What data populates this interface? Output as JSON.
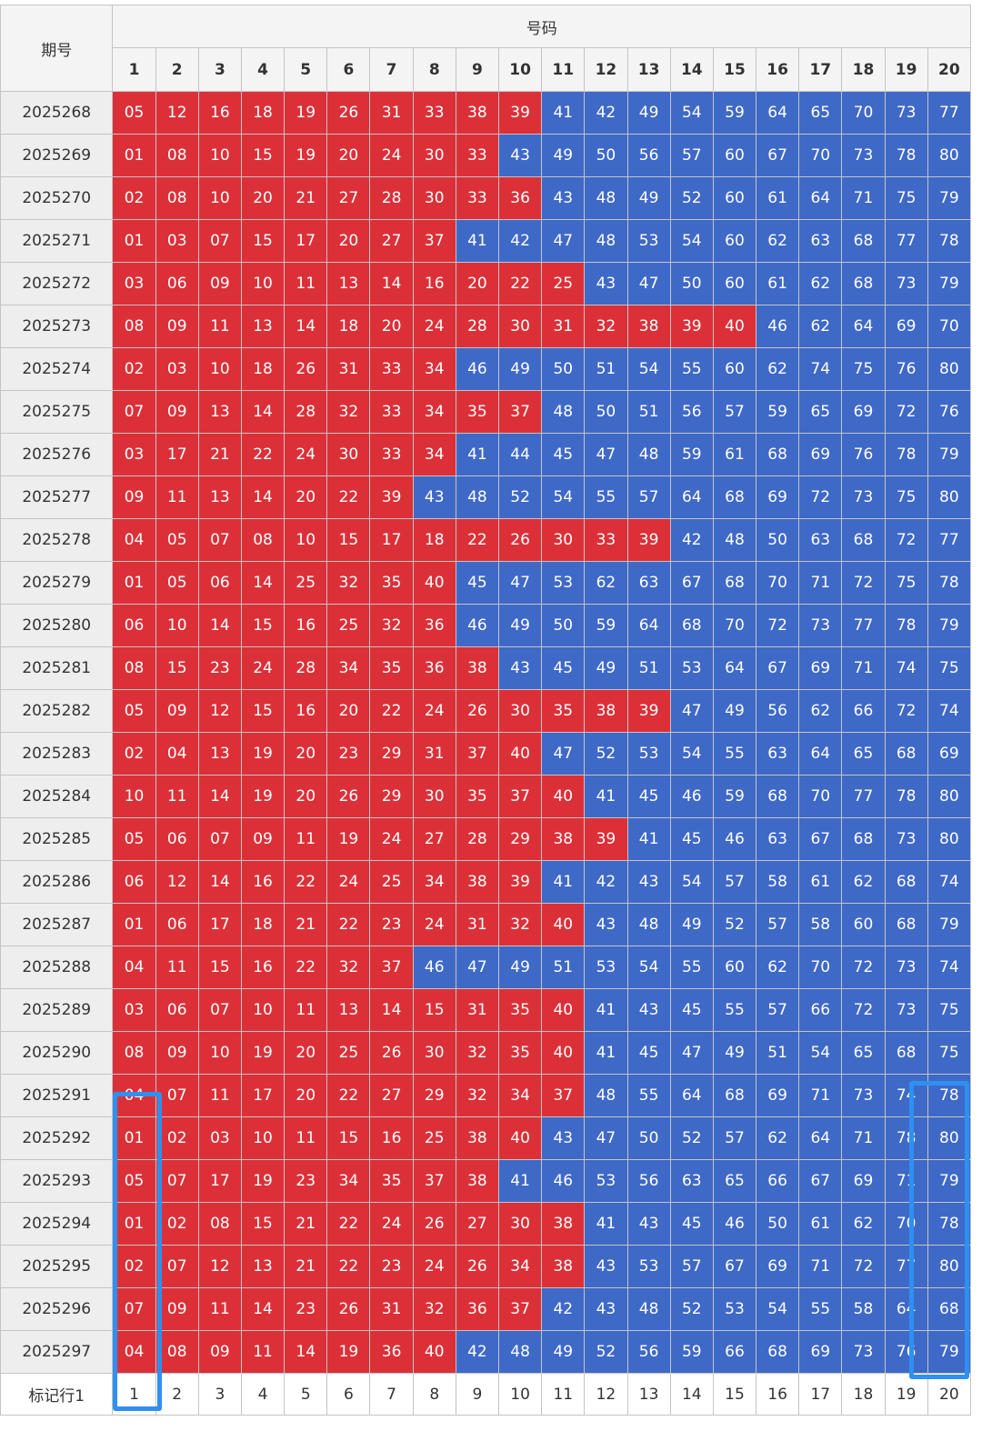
{
  "header": {
    "period_label": "期号",
    "numbers_label": "号码",
    "columns": [
      "1",
      "2",
      "3",
      "4",
      "5",
      "6",
      "7",
      "8",
      "9",
      "10",
      "11",
      "12",
      "13",
      "14",
      "15",
      "16",
      "17",
      "18",
      "19",
      "20"
    ]
  },
  "colors": {
    "low": "#dc3038",
    "high": "#3f69c7",
    "highlight": "#2e90f0"
  },
  "rows": [
    {
      "period": "2025268",
      "nums": [
        "05",
        "12",
        "16",
        "18",
        "19",
        "26",
        "31",
        "33",
        "38",
        "39",
        "41",
        "42",
        "49",
        "54",
        "59",
        "64",
        "65",
        "70",
        "73",
        "77"
      ],
      "red_count": 10
    },
    {
      "period": "2025269",
      "nums": [
        "01",
        "08",
        "10",
        "15",
        "19",
        "20",
        "24",
        "30",
        "33",
        "43",
        "49",
        "50",
        "56",
        "57",
        "60",
        "67",
        "70",
        "73",
        "78",
        "80"
      ],
      "red_count": 9
    },
    {
      "period": "2025270",
      "nums": [
        "02",
        "08",
        "10",
        "20",
        "21",
        "27",
        "28",
        "30",
        "33",
        "36",
        "43",
        "48",
        "49",
        "52",
        "60",
        "61",
        "64",
        "71",
        "75",
        "79"
      ],
      "red_count": 10
    },
    {
      "period": "2025271",
      "nums": [
        "01",
        "03",
        "07",
        "15",
        "17",
        "20",
        "27",
        "37",
        "41",
        "42",
        "47",
        "48",
        "53",
        "54",
        "60",
        "62",
        "63",
        "68",
        "77",
        "78"
      ],
      "red_count": 8
    },
    {
      "period": "2025272",
      "nums": [
        "03",
        "06",
        "09",
        "10",
        "11",
        "13",
        "14",
        "16",
        "20",
        "22",
        "25",
        "43",
        "47",
        "50",
        "60",
        "61",
        "62",
        "68",
        "73",
        "79"
      ],
      "red_count": 11
    },
    {
      "period": "2025273",
      "nums": [
        "08",
        "09",
        "11",
        "13",
        "14",
        "18",
        "20",
        "24",
        "28",
        "30",
        "31",
        "32",
        "38",
        "39",
        "40",
        "46",
        "62",
        "64",
        "69",
        "70"
      ],
      "red_count": 15
    },
    {
      "period": "2025274",
      "nums": [
        "02",
        "03",
        "10",
        "18",
        "26",
        "31",
        "33",
        "34",
        "46",
        "49",
        "50",
        "51",
        "54",
        "55",
        "60",
        "62",
        "74",
        "75",
        "76",
        "80"
      ],
      "red_count": 8
    },
    {
      "period": "2025275",
      "nums": [
        "07",
        "09",
        "13",
        "14",
        "28",
        "32",
        "33",
        "34",
        "35",
        "37",
        "48",
        "50",
        "51",
        "56",
        "57",
        "59",
        "65",
        "69",
        "72",
        "76"
      ],
      "red_count": 10
    },
    {
      "period": "2025276",
      "nums": [
        "03",
        "17",
        "21",
        "22",
        "24",
        "30",
        "33",
        "34",
        "41",
        "44",
        "45",
        "47",
        "48",
        "59",
        "61",
        "68",
        "69",
        "76",
        "78",
        "79"
      ],
      "red_count": 8
    },
    {
      "period": "2025277",
      "nums": [
        "09",
        "11",
        "13",
        "14",
        "20",
        "22",
        "39",
        "43",
        "48",
        "52",
        "54",
        "55",
        "57",
        "64",
        "68",
        "69",
        "72",
        "73",
        "75",
        "80"
      ],
      "red_count": 7
    },
    {
      "period": "2025278",
      "nums": [
        "04",
        "05",
        "07",
        "08",
        "10",
        "15",
        "17",
        "18",
        "22",
        "26",
        "30",
        "33",
        "39",
        "42",
        "48",
        "50",
        "63",
        "68",
        "72",
        "77"
      ],
      "red_count": 13
    },
    {
      "period": "2025279",
      "nums": [
        "01",
        "05",
        "06",
        "14",
        "25",
        "32",
        "35",
        "40",
        "45",
        "47",
        "53",
        "62",
        "63",
        "67",
        "68",
        "70",
        "71",
        "72",
        "75",
        "78"
      ],
      "red_count": 8
    },
    {
      "period": "2025280",
      "nums": [
        "06",
        "10",
        "14",
        "15",
        "16",
        "25",
        "32",
        "36",
        "46",
        "49",
        "50",
        "59",
        "64",
        "68",
        "70",
        "72",
        "73",
        "77",
        "78",
        "79"
      ],
      "red_count": 8
    },
    {
      "period": "2025281",
      "nums": [
        "08",
        "15",
        "23",
        "24",
        "28",
        "34",
        "35",
        "36",
        "38",
        "43",
        "45",
        "49",
        "51",
        "53",
        "64",
        "67",
        "69",
        "71",
        "74",
        "75"
      ],
      "red_count": 9
    },
    {
      "period": "2025282",
      "nums": [
        "05",
        "09",
        "12",
        "15",
        "16",
        "20",
        "22",
        "24",
        "26",
        "30",
        "35",
        "38",
        "39",
        "47",
        "49",
        "56",
        "62",
        "66",
        "72",
        "74"
      ],
      "red_count": 13
    },
    {
      "period": "2025283",
      "nums": [
        "02",
        "04",
        "13",
        "19",
        "20",
        "23",
        "29",
        "31",
        "37",
        "40",
        "47",
        "52",
        "53",
        "54",
        "55",
        "63",
        "64",
        "65",
        "68",
        "69"
      ],
      "red_count": 10
    },
    {
      "period": "2025284",
      "nums": [
        "10",
        "11",
        "14",
        "19",
        "20",
        "26",
        "29",
        "30",
        "35",
        "37",
        "40",
        "41",
        "45",
        "46",
        "59",
        "68",
        "70",
        "77",
        "78",
        "80"
      ],
      "red_count": 11
    },
    {
      "period": "2025285",
      "nums": [
        "05",
        "06",
        "07",
        "09",
        "11",
        "19",
        "24",
        "27",
        "28",
        "29",
        "38",
        "39",
        "41",
        "45",
        "46",
        "63",
        "67",
        "68",
        "73",
        "80"
      ],
      "red_count": 12
    },
    {
      "period": "2025286",
      "nums": [
        "06",
        "12",
        "14",
        "16",
        "22",
        "24",
        "25",
        "34",
        "38",
        "39",
        "41",
        "42",
        "43",
        "54",
        "57",
        "58",
        "61",
        "62",
        "68",
        "74"
      ],
      "red_count": 10
    },
    {
      "period": "2025287",
      "nums": [
        "01",
        "06",
        "17",
        "18",
        "21",
        "22",
        "23",
        "24",
        "31",
        "32",
        "40",
        "43",
        "48",
        "49",
        "52",
        "57",
        "58",
        "60",
        "68",
        "79"
      ],
      "red_count": 11
    },
    {
      "period": "2025288",
      "nums": [
        "04",
        "11",
        "15",
        "16",
        "22",
        "32",
        "37",
        "46",
        "47",
        "49",
        "51",
        "53",
        "54",
        "55",
        "60",
        "62",
        "70",
        "72",
        "73",
        "74"
      ],
      "red_count": 7
    },
    {
      "period": "2025289",
      "nums": [
        "03",
        "06",
        "07",
        "10",
        "11",
        "13",
        "14",
        "15",
        "31",
        "35",
        "40",
        "41",
        "43",
        "45",
        "55",
        "57",
        "66",
        "72",
        "73",
        "75"
      ],
      "red_count": 11
    },
    {
      "period": "2025290",
      "nums": [
        "08",
        "09",
        "10",
        "19",
        "20",
        "25",
        "26",
        "30",
        "32",
        "35",
        "40",
        "41",
        "45",
        "47",
        "49",
        "51",
        "54",
        "65",
        "68",
        "75"
      ],
      "red_count": 11
    },
    {
      "period": "2025291",
      "nums": [
        "04",
        "07",
        "11",
        "17",
        "20",
        "22",
        "27",
        "29",
        "32",
        "34",
        "37",
        "48",
        "55",
        "64",
        "68",
        "69",
        "71",
        "73",
        "74",
        "78"
      ],
      "red_count": 11
    },
    {
      "period": "2025292",
      "nums": [
        "01",
        "02",
        "03",
        "10",
        "11",
        "15",
        "16",
        "25",
        "38",
        "40",
        "43",
        "47",
        "50",
        "52",
        "57",
        "62",
        "64",
        "71",
        "78",
        "80"
      ],
      "red_count": 10
    },
    {
      "period": "2025293",
      "nums": [
        "05",
        "07",
        "17",
        "19",
        "23",
        "34",
        "35",
        "37",
        "38",
        "41",
        "46",
        "53",
        "56",
        "63",
        "65",
        "66",
        "67",
        "69",
        "71",
        "79"
      ],
      "red_count": 9
    },
    {
      "period": "2025294",
      "nums": [
        "01",
        "02",
        "08",
        "15",
        "21",
        "22",
        "24",
        "26",
        "27",
        "30",
        "38",
        "41",
        "43",
        "45",
        "46",
        "50",
        "61",
        "62",
        "70",
        "78"
      ],
      "red_count": 11
    },
    {
      "period": "2025295",
      "nums": [
        "02",
        "07",
        "12",
        "13",
        "21",
        "22",
        "23",
        "24",
        "26",
        "34",
        "38",
        "43",
        "53",
        "57",
        "67",
        "69",
        "71",
        "72",
        "77",
        "80"
      ],
      "red_count": 11
    },
    {
      "period": "2025296",
      "nums": [
        "07",
        "09",
        "11",
        "14",
        "23",
        "26",
        "31",
        "32",
        "36",
        "37",
        "42",
        "43",
        "48",
        "52",
        "53",
        "54",
        "55",
        "58",
        "64",
        "68"
      ],
      "red_count": 10
    },
    {
      "period": "2025297",
      "nums": [
        "04",
        "08",
        "09",
        "11",
        "14",
        "19",
        "36",
        "40",
        "42",
        "48",
        "49",
        "52",
        "56",
        "59",
        "66",
        "68",
        "69",
        "73",
        "76",
        "79"
      ],
      "red_count": 8
    }
  ],
  "footer": {
    "label": "标记行1",
    "columns": [
      "1",
      "2",
      "3",
      "4",
      "5",
      "6",
      "7",
      "8",
      "9",
      "10",
      "11",
      "12",
      "13",
      "14",
      "15",
      "16",
      "17",
      "18",
      "19",
      "20"
    ]
  }
}
